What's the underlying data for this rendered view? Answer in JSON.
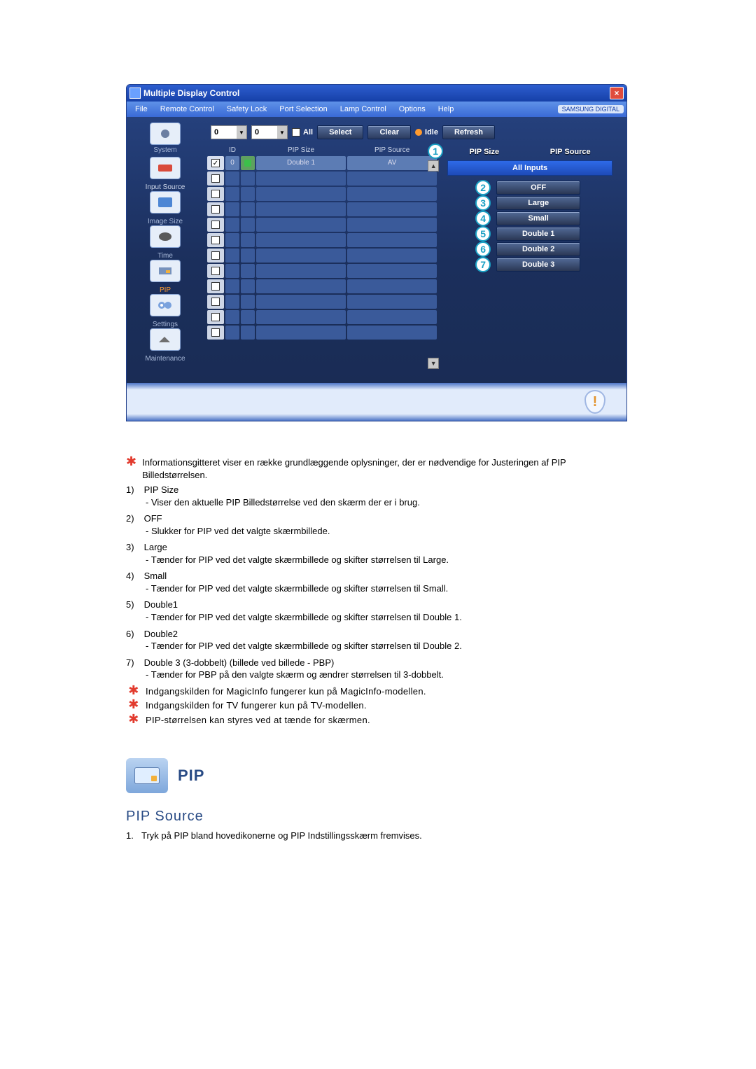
{
  "colors": {
    "title_grad_top": "#2d5ecf",
    "title_grad_bot": "#1640a8",
    "body_grad_top": "#25407c",
    "body_grad_bot": "#1a2c55",
    "accent_orange": "#ff9a2e",
    "circle_cyan": "#1aa0c4",
    "red_star": "#e23b2e",
    "heading_blue": "#294b85"
  },
  "window": {
    "title": "Multiple Display Control",
    "close_glyph": "×",
    "brand_label": "SAMSUNG DIGITAL"
  },
  "menubar": [
    "File",
    "Remote Control",
    "Safety Lock",
    "Port Selection",
    "Lamp Control",
    "Options",
    "Help"
  ],
  "sidebar": [
    {
      "label": "System",
      "active": false,
      "icon": "system-icon"
    },
    {
      "label": "",
      "active": false,
      "icon": "remote-icon"
    },
    {
      "label": "Input Source",
      "active": false,
      "icon": "input-source-icon"
    },
    {
      "label": "Image Size",
      "active": false,
      "icon": "image-size-icon"
    },
    {
      "label": "Time",
      "active": false,
      "icon": "time-icon"
    },
    {
      "label": "PIP",
      "active": true,
      "icon": "pip-icon"
    },
    {
      "label": "Settings",
      "active": false,
      "icon": "settings-icon"
    },
    {
      "label": "Maintenance",
      "active": false,
      "icon": "maintenance-icon"
    }
  ],
  "toolbar": {
    "spin1": "0",
    "spin2": "0",
    "all_label": "All",
    "select": "Select",
    "clear": "Clear",
    "idle": "Idle",
    "refresh": "Refresh"
  },
  "grid": {
    "headers": {
      "c1": "",
      "c2": "ID",
      "c3": "",
      "c4": "PIP Size",
      "c5": "PIP Source"
    },
    "rows": [
      {
        "checked": true,
        "id": "0",
        "dot": true,
        "c4": "Double 1",
        "c5": "AV"
      },
      {
        "checked": false,
        "id": "",
        "dot": false,
        "c4": "",
        "c5": ""
      },
      {
        "checked": false,
        "id": "",
        "dot": false,
        "c4": "",
        "c5": ""
      },
      {
        "checked": false,
        "id": "",
        "dot": false,
        "c4": "",
        "c5": ""
      },
      {
        "checked": false,
        "id": "",
        "dot": false,
        "c4": "",
        "c5": ""
      },
      {
        "checked": false,
        "id": "",
        "dot": false,
        "c4": "",
        "c5": ""
      },
      {
        "checked": false,
        "id": "",
        "dot": false,
        "c4": "",
        "c5": ""
      },
      {
        "checked": false,
        "id": "",
        "dot": false,
        "c4": "",
        "c5": ""
      },
      {
        "checked": false,
        "id": "",
        "dot": false,
        "c4": "",
        "c5": ""
      },
      {
        "checked": false,
        "id": "",
        "dot": false,
        "c4": "",
        "c5": ""
      },
      {
        "checked": false,
        "id": "",
        "dot": false,
        "c4": "",
        "c5": ""
      },
      {
        "checked": false,
        "id": "",
        "dot": false,
        "c4": "",
        "c5": ""
      }
    ]
  },
  "callouts": {
    "n1": "1",
    "l1": "PIP Size",
    "l1b": "PIP Source",
    "banner": "All Inputs",
    "rows": [
      {
        "n": "2",
        "label": "OFF"
      },
      {
        "n": "3",
        "label": "Large"
      },
      {
        "n": "4",
        "label": "Small"
      },
      {
        "n": "5",
        "label": "Double 1"
      },
      {
        "n": "6",
        "label": "Double 2"
      },
      {
        "n": "7",
        "label": "Double 3"
      }
    ]
  },
  "doc": {
    "intro": "Informationsgitteret viser en række grundlæggende oplysninger, der er nødvendige for Justeringen af PIP Billedstørrelsen.",
    "items": [
      {
        "num": "1)",
        "head": "PIP Size",
        "sub": "- Viser den aktuelle PIP Billedstørrelse ved den skærm der er i brug."
      },
      {
        "num": "2)",
        "head": "OFF",
        "sub": "- Slukker for PIP ved det valgte skærmbillede."
      },
      {
        "num": "3)",
        "head": "Large",
        "sub": "- Tænder for PIP ved det valgte skærmbillede og skifter størrelsen til Large."
      },
      {
        "num": "4)",
        "head": "Small",
        "sub": "- Tænder for PIP ved det valgte skærmbillede og skifter størrelsen til Small."
      },
      {
        "num": "5)",
        "head": "Double1",
        "sub": "- Tænder for PIP ved det valgte skærmbillede og skifter størrelsen til Double 1."
      },
      {
        "num": "6)",
        "head": "Double2",
        "sub": "- Tænder for PIP ved det valgte skærmbillede og skifter størrelsen til Double 2."
      },
      {
        "num": "7)",
        "head": "Double 3 (3-dobbelt) (billede ved billede - PBP)",
        "sub": "- Tænder for PBP på den valgte skærm og ændrer størrelsen til 3-dobbelt."
      }
    ],
    "notes": [
      "Indgangskilden for MagicInfo fungerer kun på MagicInfo-modellen.",
      "Indgangskilden for TV fungerer kun på TV-modellen.",
      "PIP-størrelsen kan styres ved at tænde for skærmen."
    ]
  },
  "section2": {
    "pip_title": "PIP",
    "subtitle": "PIP Source",
    "step1_n": "1.",
    "step1": "Tryk på PIP bland hovedikonerne og PIP Indstillingsskærm fremvises."
  }
}
